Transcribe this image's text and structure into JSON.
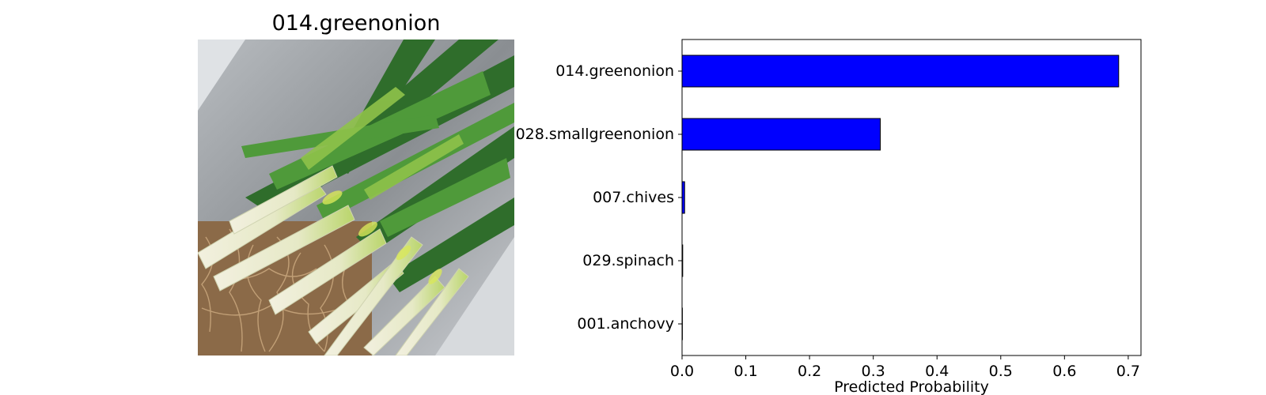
{
  "image_panel": {
    "title": "014.greenonion",
    "photo_subject": "bunch of green onions in a metal tray"
  },
  "chart_data": {
    "type": "bar",
    "orientation": "horizontal",
    "categories": [
      "014.greenonion",
      "028.smallgreenonion",
      "007.chives",
      "029.spinach",
      "001.anchovy"
    ],
    "values": [
      0.685,
      0.311,
      0.004,
      0.001,
      0.0005
    ],
    "xlabel": "Predicted Probability",
    "ylabel": "",
    "xlim": [
      0,
      0.72
    ],
    "xticks": [
      0.0,
      0.1,
      0.2,
      0.3,
      0.4,
      0.5,
      0.6,
      0.7
    ],
    "bar_color": "#0000ff",
    "edge_color": "#000000",
    "grid": false,
    "legend": "none"
  }
}
